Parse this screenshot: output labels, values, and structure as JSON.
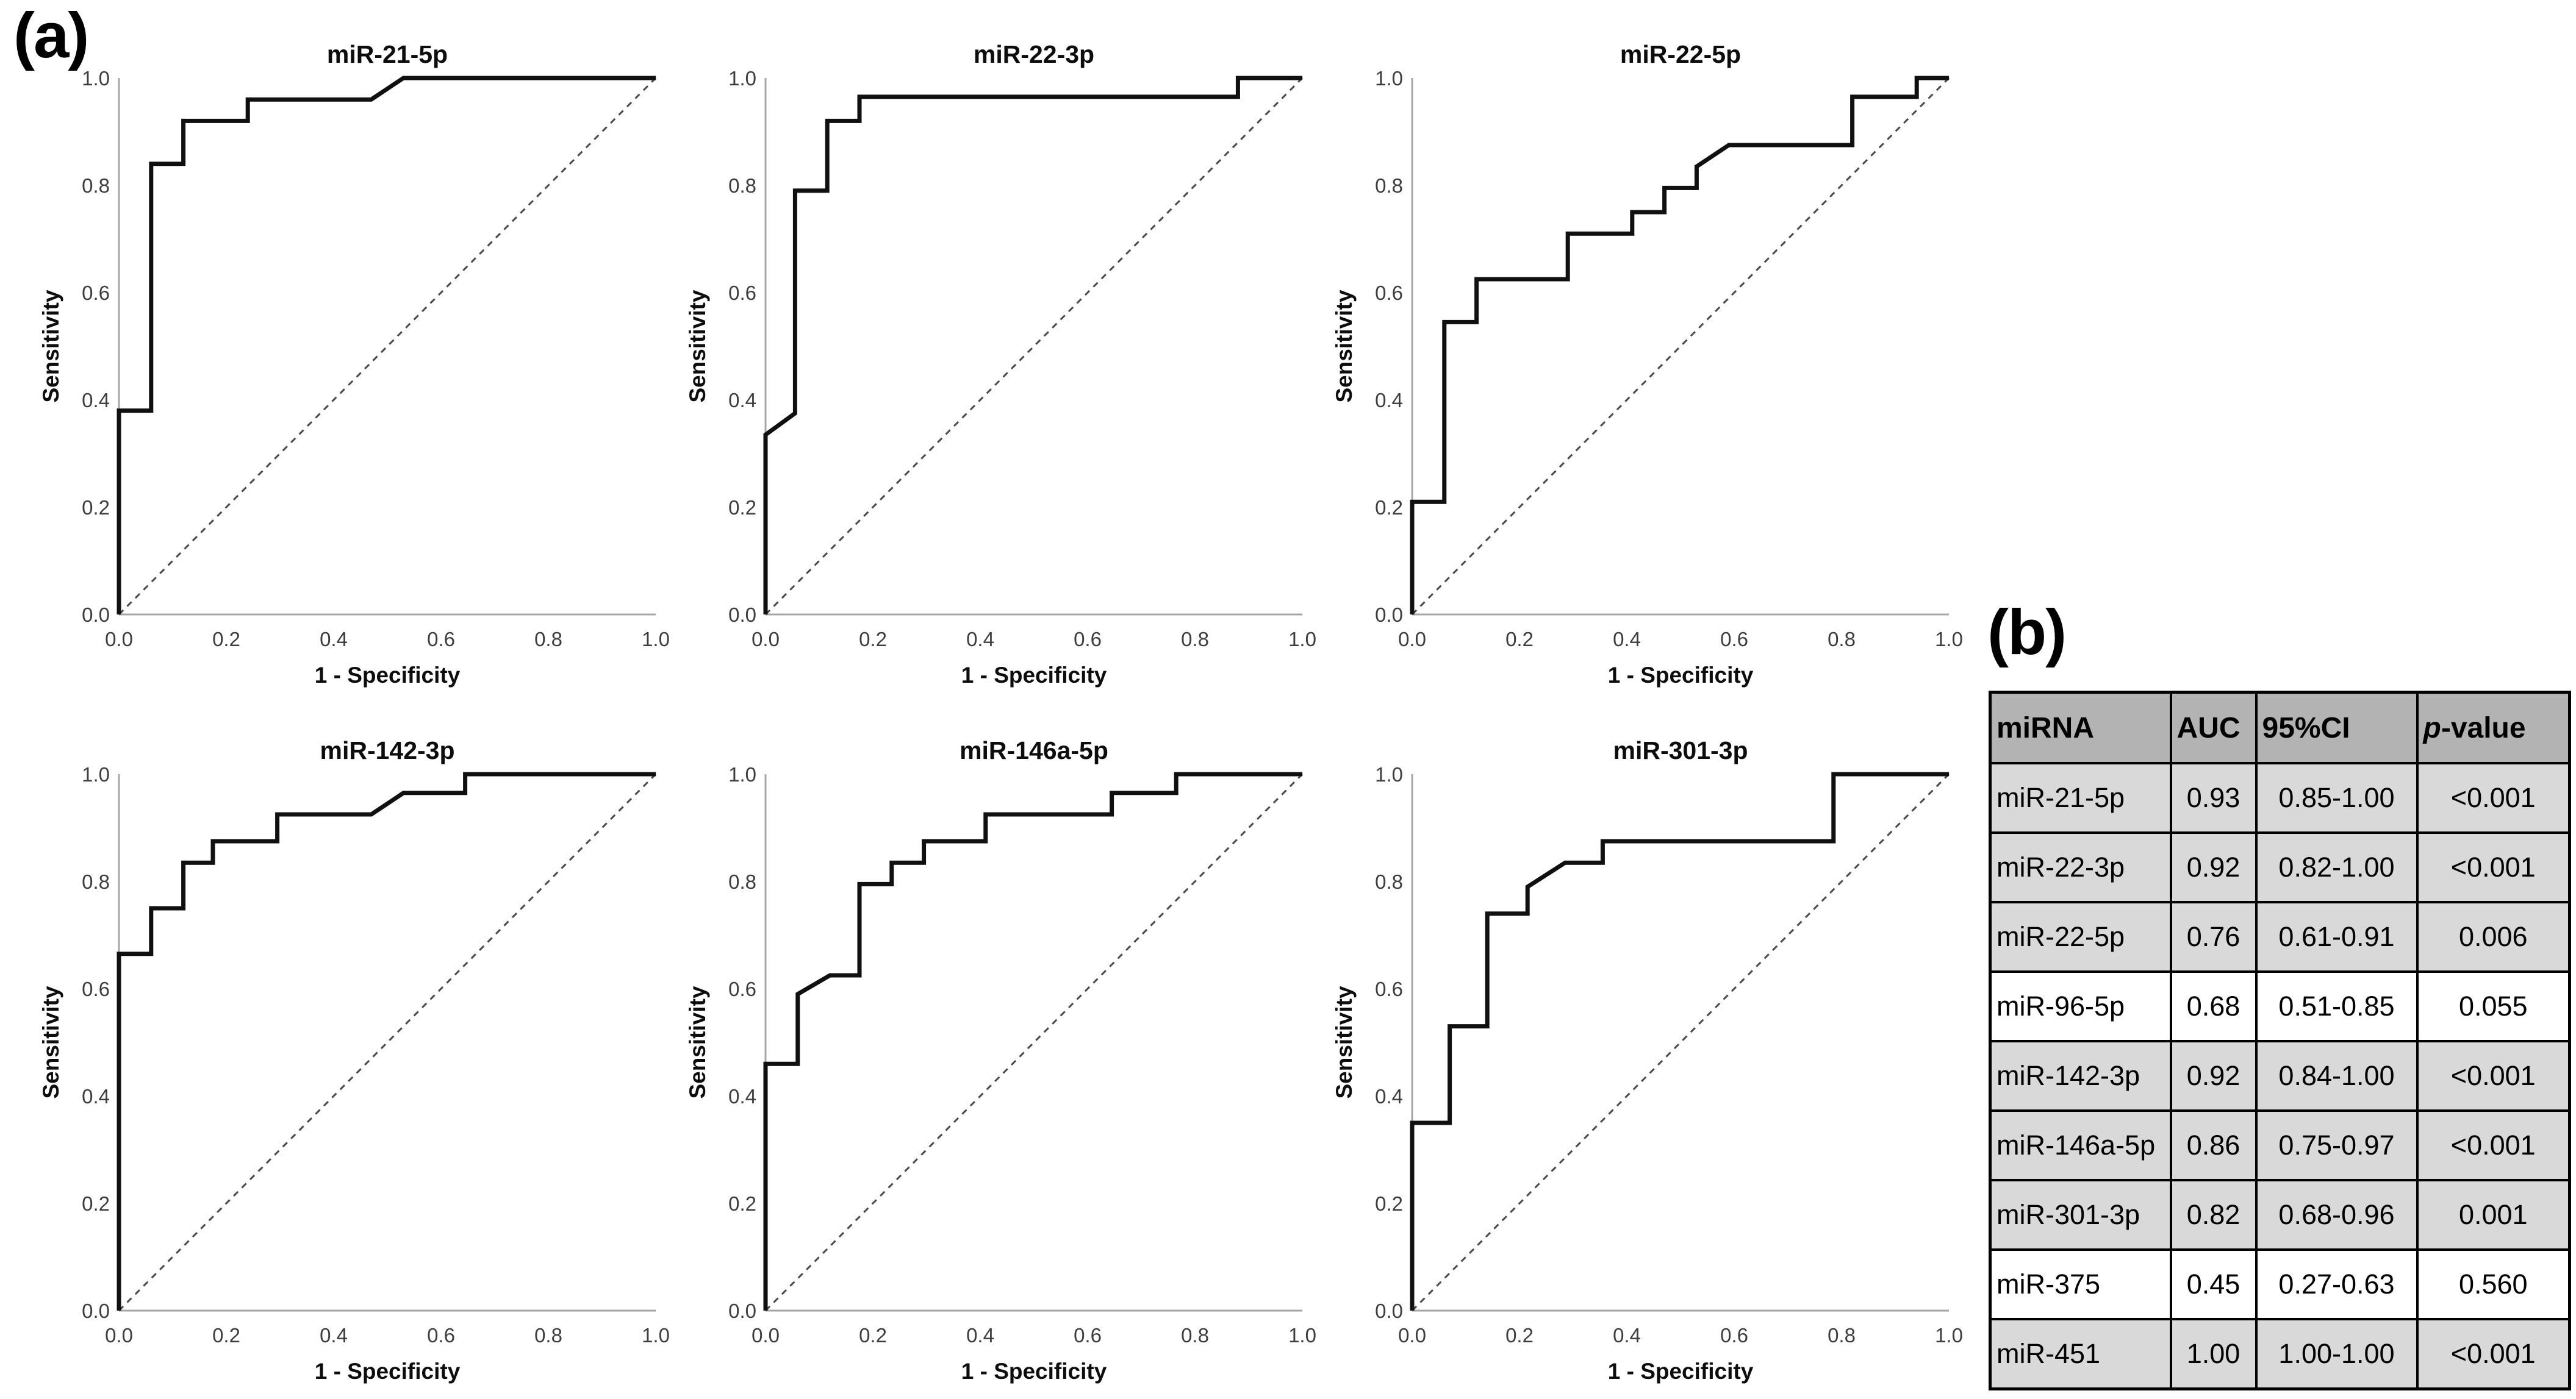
{
  "panel_a": {
    "label": "(a)"
  },
  "panel_b": {
    "label": "(b)"
  },
  "chart_data": [
    {
      "type": "line",
      "title": "miR-21-5p",
      "xlabel": "1 - Specificity",
      "ylabel": "Sensitivity",
      "xlim": [
        0,
        1
      ],
      "ylim": [
        0,
        1
      ],
      "grid": false,
      "diagonal_reference": true,
      "xticks": [
        "0.0",
        "0.2",
        "0.4",
        "0.6",
        "0.8",
        "1.0"
      ],
      "yticks": [
        "0.0",
        "0.2",
        "0.4",
        "0.6",
        "0.8",
        "1.0"
      ],
      "points": [
        [
          0,
          0
        ],
        [
          0,
          0.38
        ],
        [
          0.06,
          0.38
        ],
        [
          0.06,
          0.84
        ],
        [
          0.12,
          0.84
        ],
        [
          0.12,
          0.92
        ],
        [
          0.24,
          0.92
        ],
        [
          0.24,
          0.96
        ],
        [
          0.47,
          0.96
        ],
        [
          0.53,
          1.0
        ],
        [
          1,
          1
        ]
      ]
    },
    {
      "type": "line",
      "title": "miR-22-3p",
      "xlabel": "1 - Specificity",
      "ylabel": "Sensitivity",
      "xlim": [
        0,
        1
      ],
      "ylim": [
        0,
        1
      ],
      "grid": false,
      "diagonal_reference": true,
      "xticks": [
        "0.0",
        "0.2",
        "0.4",
        "0.6",
        "0.8",
        "1.0"
      ],
      "yticks": [
        "0.0",
        "0.2",
        "0.4",
        "0.6",
        "0.8",
        "1.0"
      ],
      "points": [
        [
          0,
          0
        ],
        [
          0,
          0.335
        ],
        [
          0.055,
          0.375
        ],
        [
          0.055,
          0.79
        ],
        [
          0.115,
          0.79
        ],
        [
          0.115,
          0.92
        ],
        [
          0.175,
          0.92
        ],
        [
          0.175,
          0.965
        ],
        [
          0.88,
          0.965
        ],
        [
          0.88,
          1.0
        ],
        [
          1,
          1
        ]
      ]
    },
    {
      "type": "line",
      "title": "miR-22-5p",
      "xlabel": "1 - Specificity",
      "ylabel": "Sensitivity",
      "xlim": [
        0,
        1
      ],
      "ylim": [
        0,
        1
      ],
      "grid": false,
      "diagonal_reference": true,
      "xticks": [
        "0.0",
        "0.2",
        "0.4",
        "0.6",
        "0.8",
        "1.0"
      ],
      "yticks": [
        "0.0",
        "0.2",
        "0.4",
        "0.6",
        "0.8",
        "1.0"
      ],
      "points": [
        [
          0,
          0
        ],
        [
          0,
          0.21
        ],
        [
          0.06,
          0.21
        ],
        [
          0.06,
          0.545
        ],
        [
          0.12,
          0.545
        ],
        [
          0.12,
          0.625
        ],
        [
          0.29,
          0.625
        ],
        [
          0.29,
          0.71
        ],
        [
          0.41,
          0.71
        ],
        [
          0.41,
          0.75
        ],
        [
          0.47,
          0.75
        ],
        [
          0.47,
          0.795
        ],
        [
          0.53,
          0.795
        ],
        [
          0.53,
          0.835
        ],
        [
          0.59,
          0.875
        ],
        [
          0.82,
          0.875
        ],
        [
          0.82,
          0.965
        ],
        [
          0.94,
          0.965
        ],
        [
          0.94,
          1.0
        ],
        [
          1,
          1
        ]
      ]
    },
    {
      "type": "line",
      "title": "miR-142-3p",
      "xlabel": "1 - Specificity",
      "ylabel": "Sensitivity",
      "xlim": [
        0,
        1
      ],
      "ylim": [
        0,
        1
      ],
      "grid": false,
      "diagonal_reference": true,
      "xticks": [
        "0.0",
        "0.2",
        "0.4",
        "0.6",
        "0.8",
        "1.0"
      ],
      "yticks": [
        "0.0",
        "0.2",
        "0.4",
        "0.6",
        "0.8",
        "1.0"
      ],
      "points": [
        [
          0,
          0
        ],
        [
          0,
          0.665
        ],
        [
          0.06,
          0.665
        ],
        [
          0.06,
          0.75
        ],
        [
          0.12,
          0.75
        ],
        [
          0.12,
          0.835
        ],
        [
          0.175,
          0.835
        ],
        [
          0.175,
          0.875
        ],
        [
          0.295,
          0.875
        ],
        [
          0.295,
          0.925
        ],
        [
          0.47,
          0.925
        ],
        [
          0.53,
          0.965
        ],
        [
          0.645,
          0.965
        ],
        [
          0.645,
          1.0
        ],
        [
          1,
          1
        ]
      ]
    },
    {
      "type": "line",
      "title": "miR-146a-5p",
      "xlabel": "1 - Specificity",
      "ylabel": "Sensitivity",
      "xlim": [
        0,
        1
      ],
      "ylim": [
        0,
        1
      ],
      "grid": false,
      "diagonal_reference": true,
      "xticks": [
        "0.0",
        "0.2",
        "0.4",
        "0.6",
        "0.8",
        "1.0"
      ],
      "yticks": [
        "0.0",
        "0.2",
        "0.4",
        "0.6",
        "0.8",
        "1.0"
      ],
      "points": [
        [
          0,
          0
        ],
        [
          0,
          0.46
        ],
        [
          0.06,
          0.46
        ],
        [
          0.06,
          0.59
        ],
        [
          0.12,
          0.625
        ],
        [
          0.175,
          0.625
        ],
        [
          0.175,
          0.795
        ],
        [
          0.235,
          0.795
        ],
        [
          0.235,
          0.835
        ],
        [
          0.295,
          0.835
        ],
        [
          0.295,
          0.875
        ],
        [
          0.41,
          0.875
        ],
        [
          0.41,
          0.925
        ],
        [
          0.645,
          0.925
        ],
        [
          0.645,
          0.965
        ],
        [
          0.765,
          0.965
        ],
        [
          0.765,
          1.0
        ],
        [
          1,
          1
        ]
      ]
    },
    {
      "type": "line",
      "title": "miR-301-3p",
      "xlabel": "1 - Specificity",
      "ylabel": "Sensitivity",
      "xlim": [
        0,
        1
      ],
      "ylim": [
        0,
        1
      ],
      "grid": false,
      "diagonal_reference": true,
      "xticks": [
        "0.0",
        "0.2",
        "0.4",
        "0.6",
        "0.8",
        "1.0"
      ],
      "yticks": [
        "0.0",
        "0.2",
        "0.4",
        "0.6",
        "0.8",
        "1.0"
      ],
      "points": [
        [
          0,
          0
        ],
        [
          0,
          0.35
        ],
        [
          0.07,
          0.35
        ],
        [
          0.07,
          0.53
        ],
        [
          0.14,
          0.53
        ],
        [
          0.14,
          0.74
        ],
        [
          0.215,
          0.74
        ],
        [
          0.215,
          0.79
        ],
        [
          0.285,
          0.835
        ],
        [
          0.355,
          0.835
        ],
        [
          0.355,
          0.875
        ],
        [
          0.785,
          0.875
        ],
        [
          0.785,
          1.0
        ],
        [
          1,
          1
        ]
      ]
    }
  ],
  "table": {
    "headers": [
      {
        "italic": "",
        "text": "miRNA"
      },
      {
        "italic": "",
        "text": "AUC"
      },
      {
        "italic": "",
        "text": "95%CI"
      },
      {
        "italic": "p",
        "text": "-value"
      }
    ],
    "rows": [
      {
        "cells": [
          "miR-21-5p",
          "0.93",
          "0.85-1.00",
          "<0.001"
        ],
        "shaded": true
      },
      {
        "cells": [
          "miR-22-3p",
          "0.92",
          "0.82-1.00",
          "<0.001"
        ],
        "shaded": true
      },
      {
        "cells": [
          "miR-22-5p",
          "0.76",
          "0.61-0.91",
          "0.006"
        ],
        "shaded": true
      },
      {
        "cells": [
          "miR-96-5p",
          "0.68",
          "0.51-0.85",
          "0.055"
        ],
        "shaded": false
      },
      {
        "cells": [
          "miR-142-3p",
          "0.92",
          "0.84-1.00",
          "<0.001"
        ],
        "shaded": true
      },
      {
        "cells": [
          "miR-146a-5p",
          "0.86",
          "0.75-0.97",
          "<0.001"
        ],
        "shaded": true
      },
      {
        "cells": [
          "miR-301-3p",
          "0.82",
          "0.68-0.96",
          "0.001"
        ],
        "shaded": true
      },
      {
        "cells": [
          "miR-375",
          "0.45",
          "0.27-0.63",
          "0.560"
        ],
        "shaded": false
      },
      {
        "cells": [
          "miR-451",
          "1.00",
          "1.00-1.00",
          "<0.001"
        ],
        "shaded": true
      }
    ]
  },
  "colors": {
    "header_bg": "#b3b3b3",
    "row_shaded_bg": "#d9d9d9",
    "row_plain_bg": "#ffffff",
    "table_border": "#000000",
    "roc_line": "#101010",
    "axis_line": "#a6a6a6",
    "tick_text": "#3d3d3d",
    "diagonal": "#4a4a4a"
  }
}
